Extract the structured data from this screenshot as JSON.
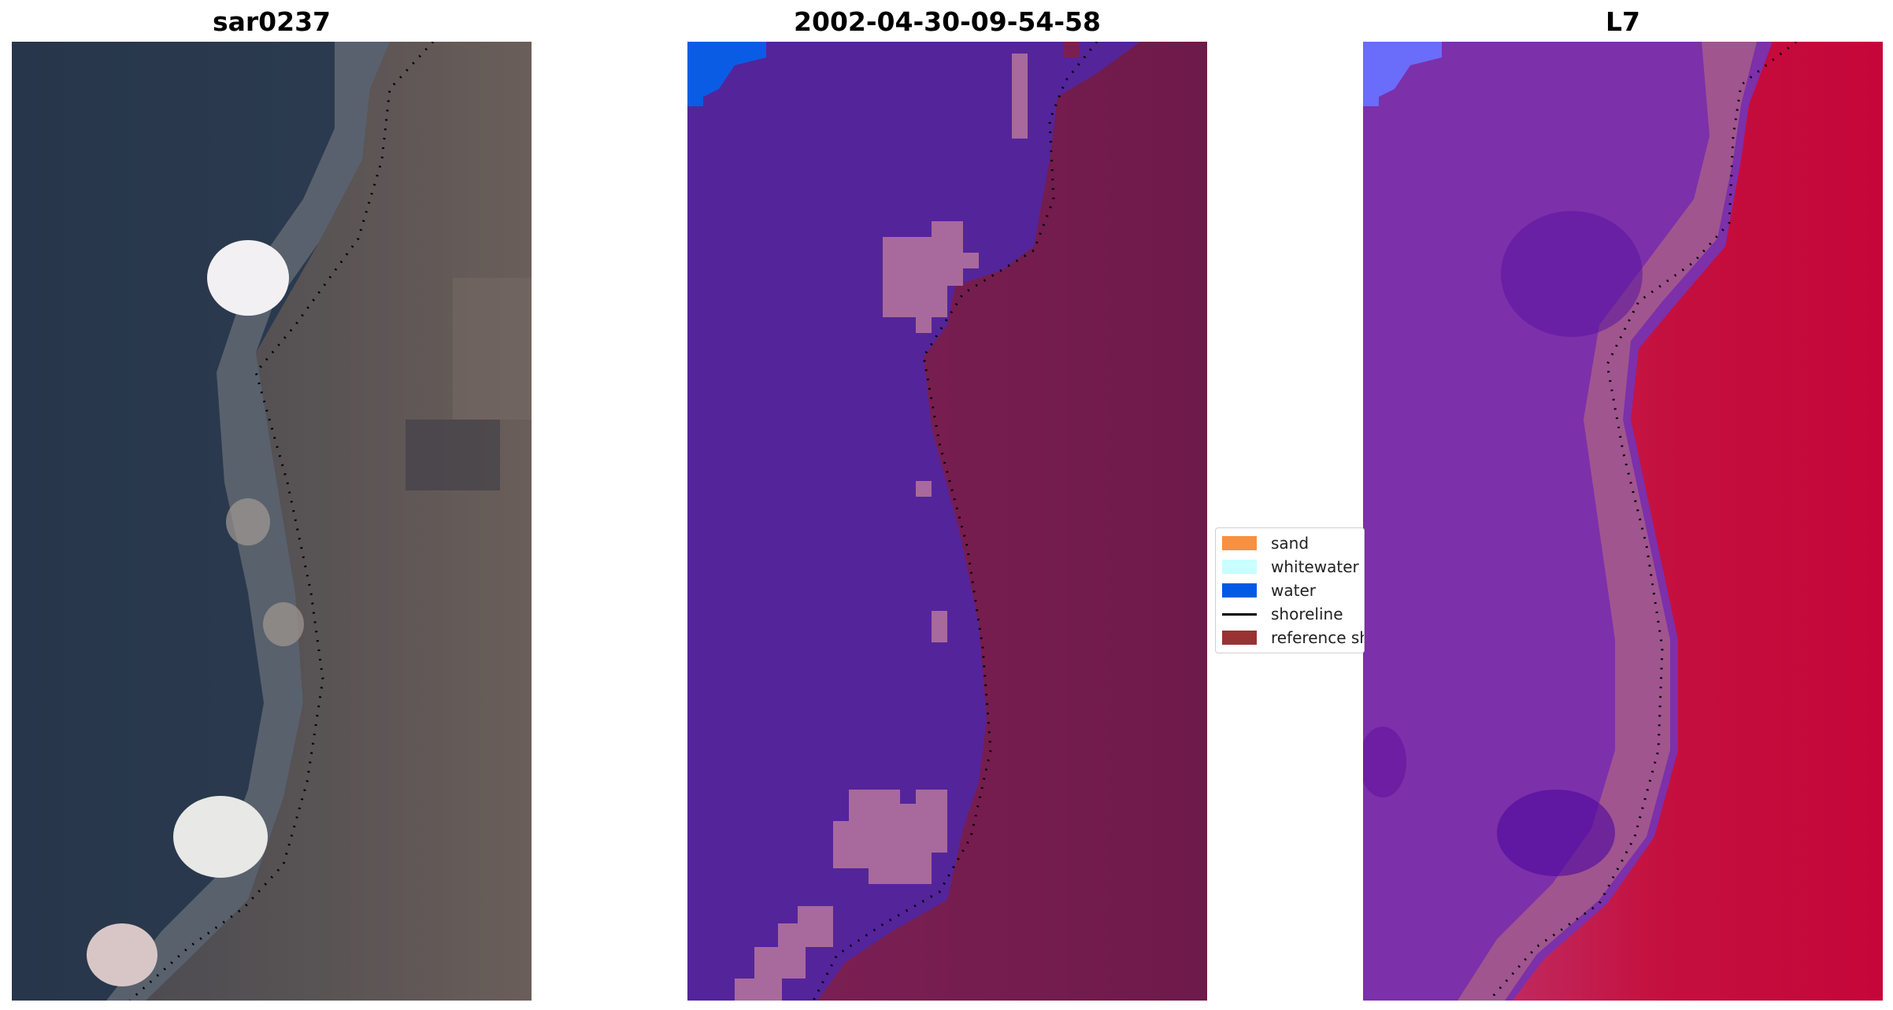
{
  "panels": [
    {
      "title": "sar0237",
      "kind": "rgb-image"
    },
    {
      "title": "2002-04-30-09-54-58",
      "kind": "classified-image"
    },
    {
      "title": "L7",
      "kind": "index-image"
    }
  ],
  "legend": {
    "items": [
      {
        "label": "sand",
        "type": "patch",
        "color": "#f79040"
      },
      {
        "label": "whitewater",
        "type": "patch",
        "color": "#c8ffff"
      },
      {
        "label": "water",
        "type": "patch",
        "color": "#005ae6"
      },
      {
        "label": "shoreline",
        "type": "line",
        "color": "#000000"
      },
      {
        "label": "reference shoreline",
        "type": "patch",
        "color": "#993333"
      }
    ]
  },
  "colors": {
    "rgb_water": "#2a384b",
    "rgb_land": "#5b5656",
    "rgb_whitewater": "#f2f0f2",
    "class_other": "#54249a",
    "class_land": "#7a2052",
    "class_patch": "#a86a9c",
    "class_corner": "#0b5ce4",
    "index_water": "#7c30aa",
    "index_land": "#c5083a",
    "index_corner": "#6a6cfa"
  }
}
